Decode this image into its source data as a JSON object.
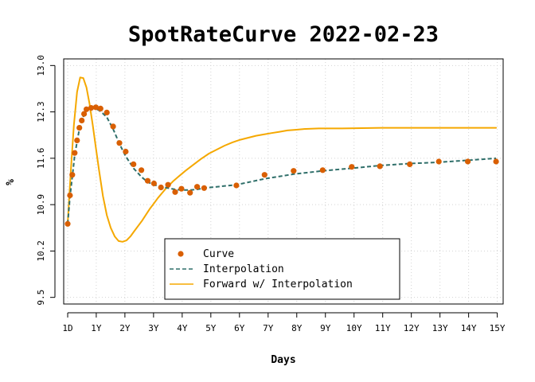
{
  "chart_data": {
    "type": "line",
    "title": "SpotRateCurve 2022-02-23",
    "xlabel": "Days",
    "ylabel": "%",
    "xlim": [
      -50,
      5550
    ],
    "ylim": [
      9.4,
      13.1
    ],
    "grid": true,
    "legend_placement": "bottom-center",
    "y_ticks": [
      {
        "value": 9.5,
        "label": "9.5"
      },
      {
        "value": 10.2,
        "label": "10.2"
      },
      {
        "value": 10.9,
        "label": "10.9"
      },
      {
        "value": 11.6,
        "label": "11.6"
      },
      {
        "value": 12.3,
        "label": "12.3"
      },
      {
        "value": 13.0,
        "label": "13.0"
      }
    ],
    "x_ticks": [
      {
        "value": 1,
        "label": "1D"
      },
      {
        "value": 365,
        "label": "1Y"
      },
      {
        "value": 730,
        "label": "2Y"
      },
      {
        "value": 1095,
        "label": "3Y"
      },
      {
        "value": 1460,
        "label": "4Y"
      },
      {
        "value": 1825,
        "label": "5Y"
      },
      {
        "value": 2190,
        "label": "6Y"
      },
      {
        "value": 2555,
        "label": "7Y"
      },
      {
        "value": 2920,
        "label": "8Y"
      },
      {
        "value": 3285,
        "label": "9Y"
      },
      {
        "value": 3650,
        "label": "10Y"
      },
      {
        "value": 4015,
        "label": "11Y"
      },
      {
        "value": 4380,
        "label": "12Y"
      },
      {
        "value": 4745,
        "label": "13Y"
      },
      {
        "value": 5110,
        "label": "14Y"
      },
      {
        "value": 5475,
        "label": "15Y"
      }
    ],
    "series": [
      {
        "name": "Curve",
        "style": "points",
        "color": "#d95f02",
        "x": [
          1,
          30,
          60,
          90,
          120,
          150,
          180,
          210,
          240,
          300,
          360,
          420,
          500,
          580,
          660,
          740,
          840,
          940,
          1020,
          1100,
          1190,
          1280,
          1370,
          1450,
          1560,
          1650,
          1740,
          2150,
          2510,
          2880,
          3250,
          3620,
          3980,
          4360,
          4730,
          5100,
          5460
        ],
        "y": [
          10.61,
          11.04,
          11.35,
          11.68,
          11.87,
          12.06,
          12.17,
          12.27,
          12.34,
          12.36,
          12.37,
          12.35,
          12.29,
          12.08,
          11.83,
          11.7,
          11.51,
          11.42,
          11.26,
          11.22,
          11.16,
          11.2,
          11.09,
          11.14,
          11.08,
          11.17,
          11.15,
          11.19,
          11.35,
          11.41,
          11.42,
          11.47,
          11.48,
          11.51,
          11.55,
          11.55,
          11.55
        ]
      },
      {
        "name": "Interpolation",
        "style": "dashed",
        "color": "#2f6f6a",
        "x": [
          1,
          30,
          60,
          90,
          120,
          150,
          180,
          210,
          240,
          300,
          360,
          420,
          500,
          580,
          660,
          740,
          840,
          940,
          1020,
          1100,
          1190,
          1280,
          1370,
          1450,
          1560,
          1650,
          1740,
          2150,
          2510,
          2880,
          3250,
          3620,
          3980,
          4360,
          4730,
          5100,
          5460
        ],
        "y": [
          10.61,
          11.02,
          11.32,
          11.64,
          11.85,
          12.04,
          12.16,
          12.26,
          12.32,
          12.36,
          12.35,
          12.31,
          12.22,
          12.04,
          11.82,
          11.63,
          11.45,
          11.32,
          11.24,
          11.2,
          11.17,
          11.15,
          11.13,
          11.12,
          11.12,
          11.13,
          11.15,
          11.2,
          11.29,
          11.36,
          11.41,
          11.45,
          11.49,
          11.52,
          11.54,
          11.57,
          11.6
        ]
      },
      {
        "name": "Forward w/ Interpolation",
        "style": "solid",
        "color": "#f5a800",
        "x": [
          1,
          40,
          80,
          120,
          160,
          200,
          240,
          280,
          320,
          360,
          400,
          450,
          500,
          550,
          600,
          650,
          700,
          750,
          800,
          850,
          900,
          950,
          1000,
          1050,
          1100,
          1150,
          1200,
          1250,
          1300,
          1350,
          1400,
          1450,
          1500,
          1600,
          1700,
          1800,
          1900,
          2000,
          2100,
          2200,
          2300,
          2400,
          2500,
          2600,
          2700,
          2800,
          2900,
          3000,
          3200,
          3500,
          4000,
          4500,
          5000,
          5460
        ],
        "y": [
          10.61,
          11.4,
          12.1,
          12.6,
          12.82,
          12.81,
          12.67,
          12.42,
          12.1,
          11.76,
          11.42,
          11.03,
          10.74,
          10.55,
          10.42,
          10.35,
          10.34,
          10.36,
          10.42,
          10.5,
          10.58,
          10.66,
          10.75,
          10.84,
          10.92,
          11.0,
          11.07,
          11.14,
          11.2,
          11.26,
          11.31,
          11.36,
          11.41,
          11.5,
          11.59,
          11.67,
          11.73,
          11.79,
          11.84,
          11.88,
          11.91,
          11.94,
          11.96,
          11.98,
          12.0,
          12.02,
          12.03,
          12.04,
          12.05,
          12.05,
          12.06,
          12.06,
          12.06,
          12.06
        ]
      }
    ]
  }
}
